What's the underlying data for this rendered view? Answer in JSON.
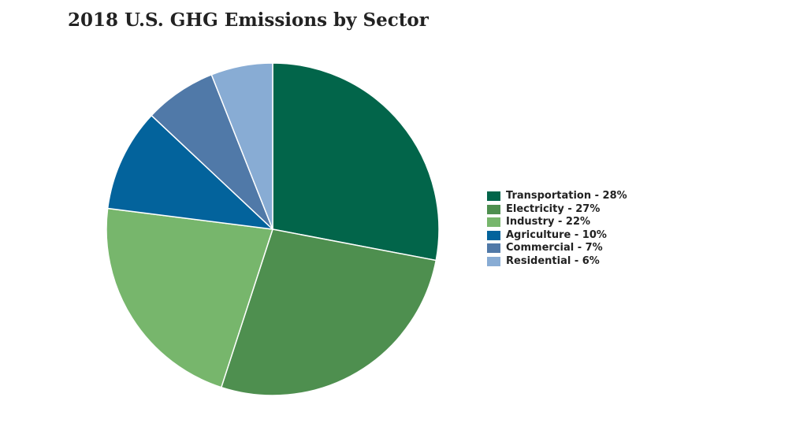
{
  "chart_data": {
    "type": "pie",
    "title": "2018 U.S. GHG Emissions by Sector",
    "categories": [
      "Transportation",
      "Electricity",
      "Industry",
      "Agriculture",
      "Commercial",
      "Residential"
    ],
    "values": [
      28,
      27,
      22,
      10,
      7,
      6
    ],
    "unit": "%",
    "legend_position": "right",
    "legend": [
      {
        "label": "Transportation - 28%",
        "color": "#02654a"
      },
      {
        "label": "Electricity - 27%",
        "color": "#4e8f4f"
      },
      {
        "label": "Industry - 22%",
        "color": "#77b66c"
      },
      {
        "label": "Agriculture - 10%",
        "color": "#03639c"
      },
      {
        "label": "Commercial - 7%",
        "color": "#5079a8"
      },
      {
        "label": "Residential - 6%",
        "color": "#88acd4"
      }
    ]
  }
}
